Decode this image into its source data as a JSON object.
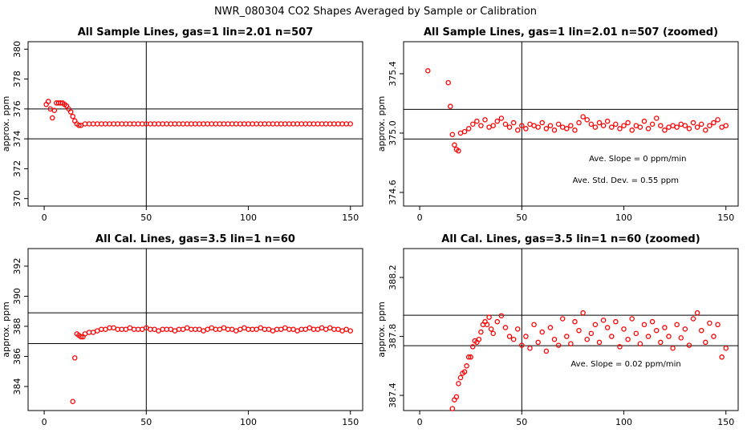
{
  "title": "NWR_080304  CO2 Shapes Averaged by Sample or Calibration",
  "chart_data": [
    {
      "type": "scatter",
      "title": "All Sample Lines, gas=1 lin=2.01 n=507",
      "y_label": "approx. ppm",
      "color": "#ff0000",
      "xlim": [
        -7.9,
        156
      ],
      "ylim": [
        369.5,
        380.5
      ],
      "xticks": [
        0,
        50,
        100,
        150
      ],
      "yticks": [
        370,
        372,
        374,
        376,
        378,
        380
      ],
      "hlines": [
        376,
        374
      ],
      "vlines": [
        50
      ],
      "x": [
        1,
        2,
        3,
        4,
        5,
        6,
        7,
        8,
        9,
        10,
        11,
        12,
        13,
        14,
        15,
        16,
        17,
        18,
        20,
        22,
        24,
        26,
        28,
        30,
        32,
        34,
        36,
        38,
        40,
        42,
        44,
        46,
        48,
        50,
        52,
        54,
        56,
        58,
        60,
        62,
        64,
        66,
        68,
        70,
        72,
        74,
        76,
        78,
        80,
        82,
        84,
        86,
        88,
        90,
        92,
        94,
        96,
        98,
        100,
        102,
        104,
        106,
        108,
        110,
        112,
        114,
        116,
        118,
        120,
        122,
        124,
        126,
        128,
        130,
        132,
        134,
        136,
        138,
        140,
        142,
        144,
        146,
        148,
        150
      ],
      "values": [
        376.3,
        376.5,
        376.0,
        375.4,
        375.9,
        376.4,
        376.4,
        376.4,
        376.4,
        376.3,
        376.2,
        376.0,
        375.8,
        375.5,
        375.2,
        375.0,
        374.9,
        374.9,
        375.0,
        375.0,
        375.0,
        375.0,
        375.0,
        375.0,
        375.0,
        375.0,
        375.0,
        375.0,
        375.0,
        375.0,
        375.0,
        375.0,
        375.0,
        375.0,
        375.0,
        375.0,
        375.0,
        375.0,
        375.0,
        375.0,
        375.0,
        375.0,
        375.0,
        375.0,
        375.0,
        375.0,
        375.0,
        375.0,
        375.0,
        375.0,
        375.0,
        375.0,
        375.0,
        375.0,
        375.0,
        375.0,
        375.0,
        375.0,
        375.0,
        375.0,
        375.0,
        375.0,
        375.0,
        375.0,
        375.0,
        375.0,
        375.0,
        375.0,
        375.0,
        375.0,
        375.0,
        375.0,
        375.0,
        375.0,
        375.0,
        375.0,
        375.0,
        375.0,
        375.0,
        375.0,
        375.0,
        375.0,
        375.0,
        375.0
      ]
    },
    {
      "type": "scatter",
      "title": "All Sample Lines, gas=1 lin=2.01 n=507 (zoomed)",
      "y_label": "approx. ppm",
      "color": "#ff0000",
      "xlim": [
        -7.9,
        156
      ],
      "ylim": [
        374.508,
        375.616
      ],
      "xticks": [
        0,
        50,
        100,
        150
      ],
      "yticks": [
        374.6,
        {
          "value": 375,
          "label": "375.0"
        },
        375.4
      ],
      "hlines": [
        375.16,
        374.96
      ],
      "vlines": [
        50
      ],
      "annotations": [
        {
          "text": "Ave. Slope =  0  ppm/min",
          "x": 106.8,
          "y": 374.81
        },
        {
          "text": "Ave. Std. Dev. =  0.55  ppm",
          "x": 100.9,
          "y": 374.665
        }
      ],
      "x": [
        4,
        14,
        15,
        16,
        17,
        18,
        19,
        20,
        22,
        24,
        26,
        28,
        30,
        32,
        34,
        36,
        38,
        40,
        42,
        44,
        46,
        48,
        50,
        52,
        54,
        56,
        58,
        60,
        62,
        64,
        66,
        68,
        70,
        72,
        74,
        76,
        78,
        80,
        82,
        84,
        86,
        88,
        90,
        92,
        94,
        96,
        98,
        100,
        102,
        104,
        106,
        108,
        110,
        112,
        114,
        116,
        118,
        120,
        122,
        124,
        126,
        128,
        130,
        132,
        134,
        136,
        138,
        140,
        142,
        144,
        146,
        148,
        150
      ],
      "values": [
        375.42,
        375.34,
        375.18,
        374.99,
        374.92,
        374.89,
        374.88,
        375.0,
        375.01,
        375.03,
        375.06,
        375.08,
        375.05,
        375.09,
        375.04,
        375.05,
        375.08,
        375.1,
        375.06,
        375.04,
        375.07,
        375.02,
        375.05,
        375.03,
        375.06,
        375.05,
        375.04,
        375.07,
        375.03,
        375.05,
        375.02,
        375.06,
        375.04,
        375.03,
        375.05,
        375.02,
        375.07,
        375.11,
        375.09,
        375.06,
        375.04,
        375.07,
        375.05,
        375.08,
        375.04,
        375.06,
        375.03,
        375.05,
        375.07,
        375.02,
        375.05,
        375.04,
        375.08,
        375.03,
        375.06,
        375.1,
        375.05,
        375.02,
        375.04,
        375.05,
        375.04,
        375.06,
        375.05,
        375.03,
        375.07,
        375.04,
        375.06,
        375.02,
        375.05,
        375.07,
        375.09,
        375.04,
        375.05
      ]
    },
    {
      "type": "scatter",
      "title": "All Cal. Lines, gas=3.5 lin=1 n=60",
      "y_label": "approx. ppm",
      "color": "#ff0000",
      "xlim": [
        -7.9,
        156
      ],
      "ylim": [
        382.4,
        393.17
      ],
      "xticks": [
        0,
        50,
        100,
        150
      ],
      "yticks": [
        384,
        386,
        388,
        390,
        392
      ],
      "hlines": [
        388.9,
        386.85
      ],
      "vlines": [
        50
      ],
      "x": [
        14,
        15,
        16,
        17,
        18,
        19,
        20,
        22,
        24,
        26,
        28,
        30,
        32,
        34,
        36,
        38,
        40,
        42,
        44,
        46,
        48,
        50,
        52,
        54,
        56,
        58,
        60,
        62,
        64,
        66,
        68,
        70,
        72,
        74,
        76,
        78,
        80,
        82,
        84,
        86,
        88,
        90,
        92,
        94,
        96,
        98,
        100,
        102,
        104,
        106,
        108,
        110,
        112,
        114,
        116,
        118,
        120,
        122,
        124,
        126,
        128,
        130,
        132,
        134,
        136,
        138,
        140,
        142,
        144,
        146,
        148,
        150
      ],
      "values": [
        383.0,
        385.9,
        387.5,
        387.4,
        387.3,
        387.3,
        387.5,
        387.6,
        387.6,
        387.7,
        387.8,
        387.8,
        387.9,
        387.9,
        387.8,
        387.8,
        387.8,
        387.9,
        387.8,
        387.8,
        387.8,
        387.9,
        387.8,
        387.8,
        387.7,
        387.8,
        387.8,
        387.8,
        387.7,
        387.8,
        387.8,
        387.9,
        387.8,
        387.8,
        387.8,
        387.7,
        387.8,
        387.9,
        387.8,
        387.8,
        387.9,
        387.8,
        387.8,
        387.7,
        387.8,
        387.9,
        387.8,
        387.8,
        387.8,
        387.9,
        387.8,
        387.8,
        387.7,
        387.8,
        387.8,
        387.9,
        387.8,
        387.8,
        387.7,
        387.8,
        387.8,
        387.9,
        387.8,
        387.8,
        387.9,
        387.8,
        387.9,
        387.8,
        387.8,
        387.7,
        387.8,
        387.7
      ]
    },
    {
      "type": "scatter",
      "title": "All Cal. Lines, gas=3.5 lin=1 n=60 (zoomed)",
      "y_label": "approx. ppm",
      "color": "#ff0000",
      "xlim": [
        -7.9,
        156
      ],
      "ylim": [
        387.297,
        388.396
      ],
      "xticks": [
        0,
        50,
        100,
        150
      ],
      "yticks": [
        387.4,
        387.8,
        388.2
      ],
      "hlines": [
        387.944,
        387.737
      ],
      "vlines": [
        50
      ],
      "annotations": [
        {
          "text": "Ave. Slope =  0.02  ppm/min",
          "x": 101,
          "y": 387.596
        }
      ],
      "x": [
        16,
        17,
        18,
        19,
        20,
        21,
        22,
        23,
        24,
        25,
        26,
        27,
        28,
        29,
        30,
        31,
        32,
        33,
        34,
        35,
        36,
        38,
        40,
        42,
        44,
        46,
        48,
        50,
        52,
        54,
        56,
        58,
        60,
        62,
        64,
        66,
        68,
        70,
        72,
        74,
        76,
        78,
        80,
        82,
        84,
        86,
        88,
        90,
        92,
        94,
        96,
        98,
        100,
        102,
        104,
        106,
        108,
        110,
        112,
        114,
        116,
        118,
        120,
        122,
        124,
        126,
        128,
        130,
        132,
        134,
        136,
        138,
        140,
        142,
        144,
        146,
        148,
        150
      ],
      "values": [
        387.31,
        387.37,
        387.39,
        387.48,
        387.52,
        387.55,
        387.56,
        387.6,
        387.66,
        387.66,
        387.73,
        387.77,
        387.76,
        387.78,
        387.83,
        387.88,
        387.9,
        387.88,
        387.93,
        387.85,
        387.82,
        387.9,
        387.94,
        387.86,
        387.8,
        387.78,
        387.85,
        387.74,
        387.8,
        387.72,
        387.88,
        387.76,
        387.83,
        387.7,
        387.86,
        387.78,
        387.74,
        387.92,
        387.8,
        387.75,
        387.9,
        387.84,
        387.96,
        387.78,
        387.82,
        387.88,
        387.76,
        387.91,
        387.86,
        387.8,
        387.9,
        387.73,
        387.85,
        387.78,
        387.92,
        387.82,
        387.75,
        387.88,
        387.8,
        387.9,
        387.84,
        387.76,
        387.86,
        387.8,
        387.72,
        387.88,
        387.79,
        387.85,
        387.74,
        387.92,
        387.96,
        387.84,
        387.76,
        387.89,
        387.8,
        387.88,
        387.66,
        387.72
      ]
    }
  ]
}
